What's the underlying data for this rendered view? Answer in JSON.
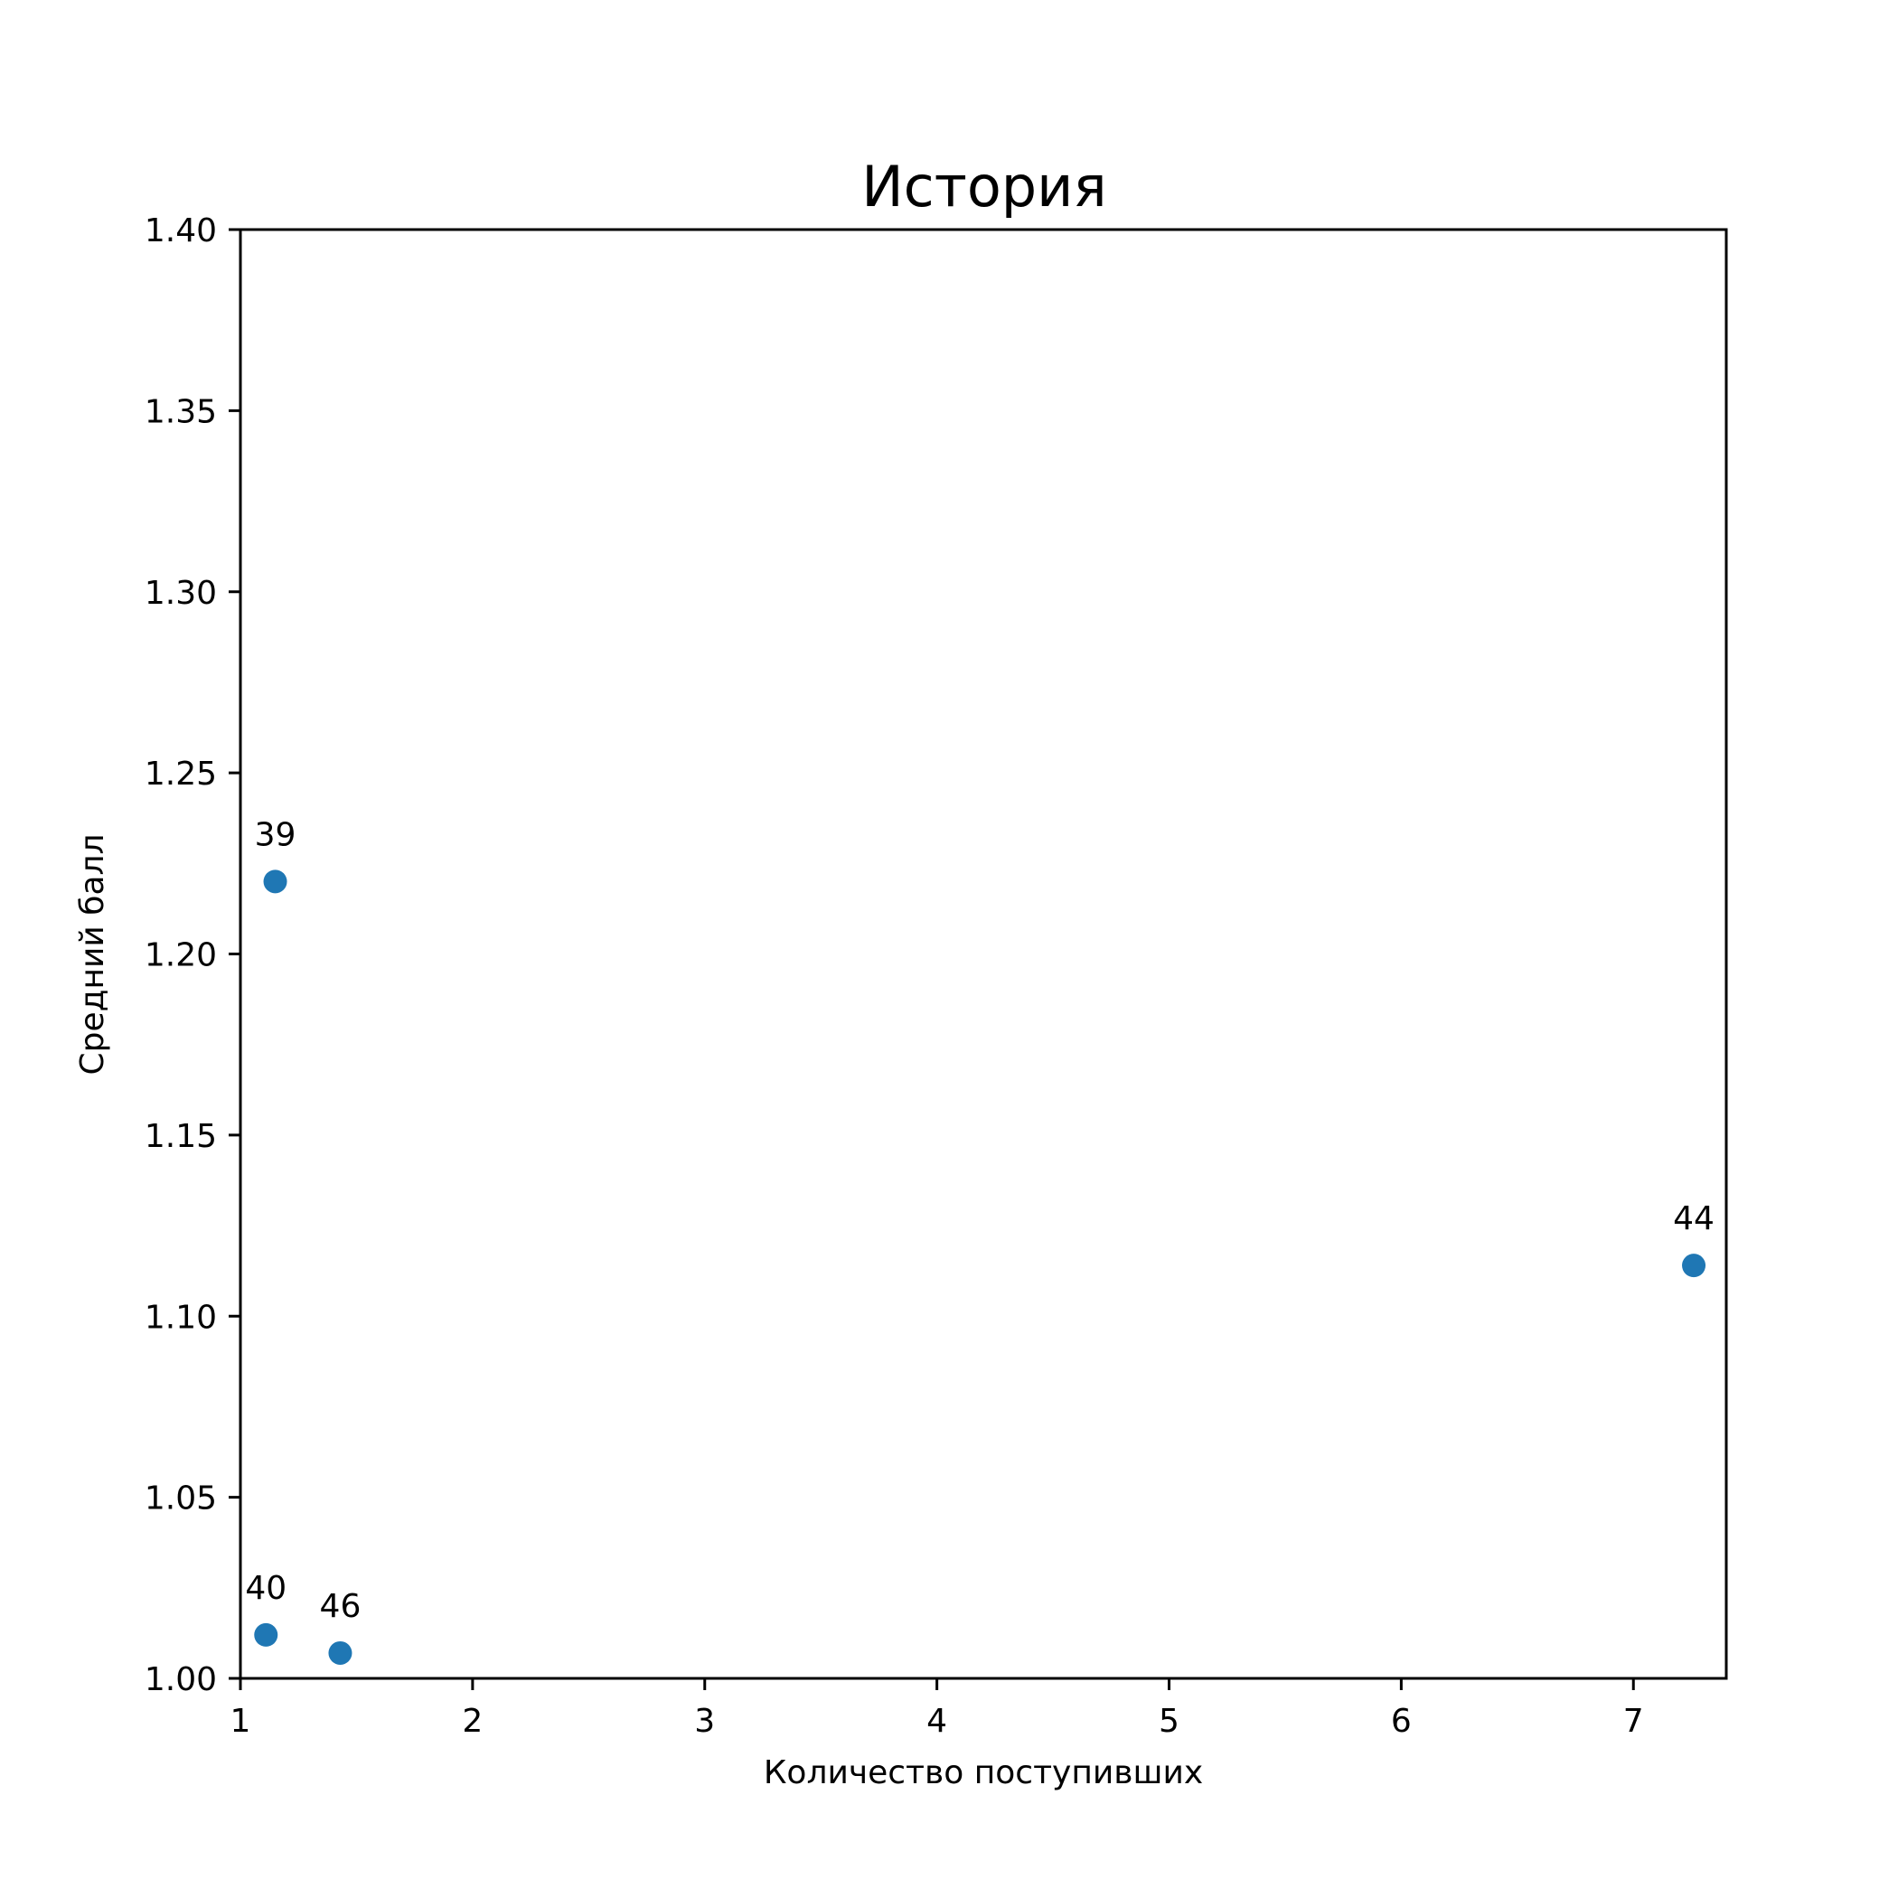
{
  "chart_data": {
    "type": "scatter",
    "title": "История",
    "xlabel": "Количество поступивших",
    "ylabel": "Средний балл",
    "xlim": [
      1,
      7.4
    ],
    "ylim": [
      1.0,
      1.4
    ],
    "xticks": [
      1,
      2,
      3,
      4,
      5,
      6,
      7
    ],
    "yticks": [
      1.0,
      1.05,
      1.1,
      1.15,
      1.2,
      1.25,
      1.3,
      1.35,
      1.4
    ],
    "ytick_labels": [
      "1.00",
      "1.05",
      "1.10",
      "1.15",
      "1.20",
      "1.25",
      "1.30",
      "1.35",
      "1.40"
    ],
    "grid": false,
    "marker_color": "#1f77b4",
    "points": [
      {
        "x": 1.15,
        "y": 1.22,
        "label": "39"
      },
      {
        "x": 1.11,
        "y": 1.012,
        "label": "40"
      },
      {
        "x": 7.26,
        "y": 1.114,
        "label": "44"
      },
      {
        "x": 1.43,
        "y": 1.007,
        "label": "46"
      }
    ]
  }
}
